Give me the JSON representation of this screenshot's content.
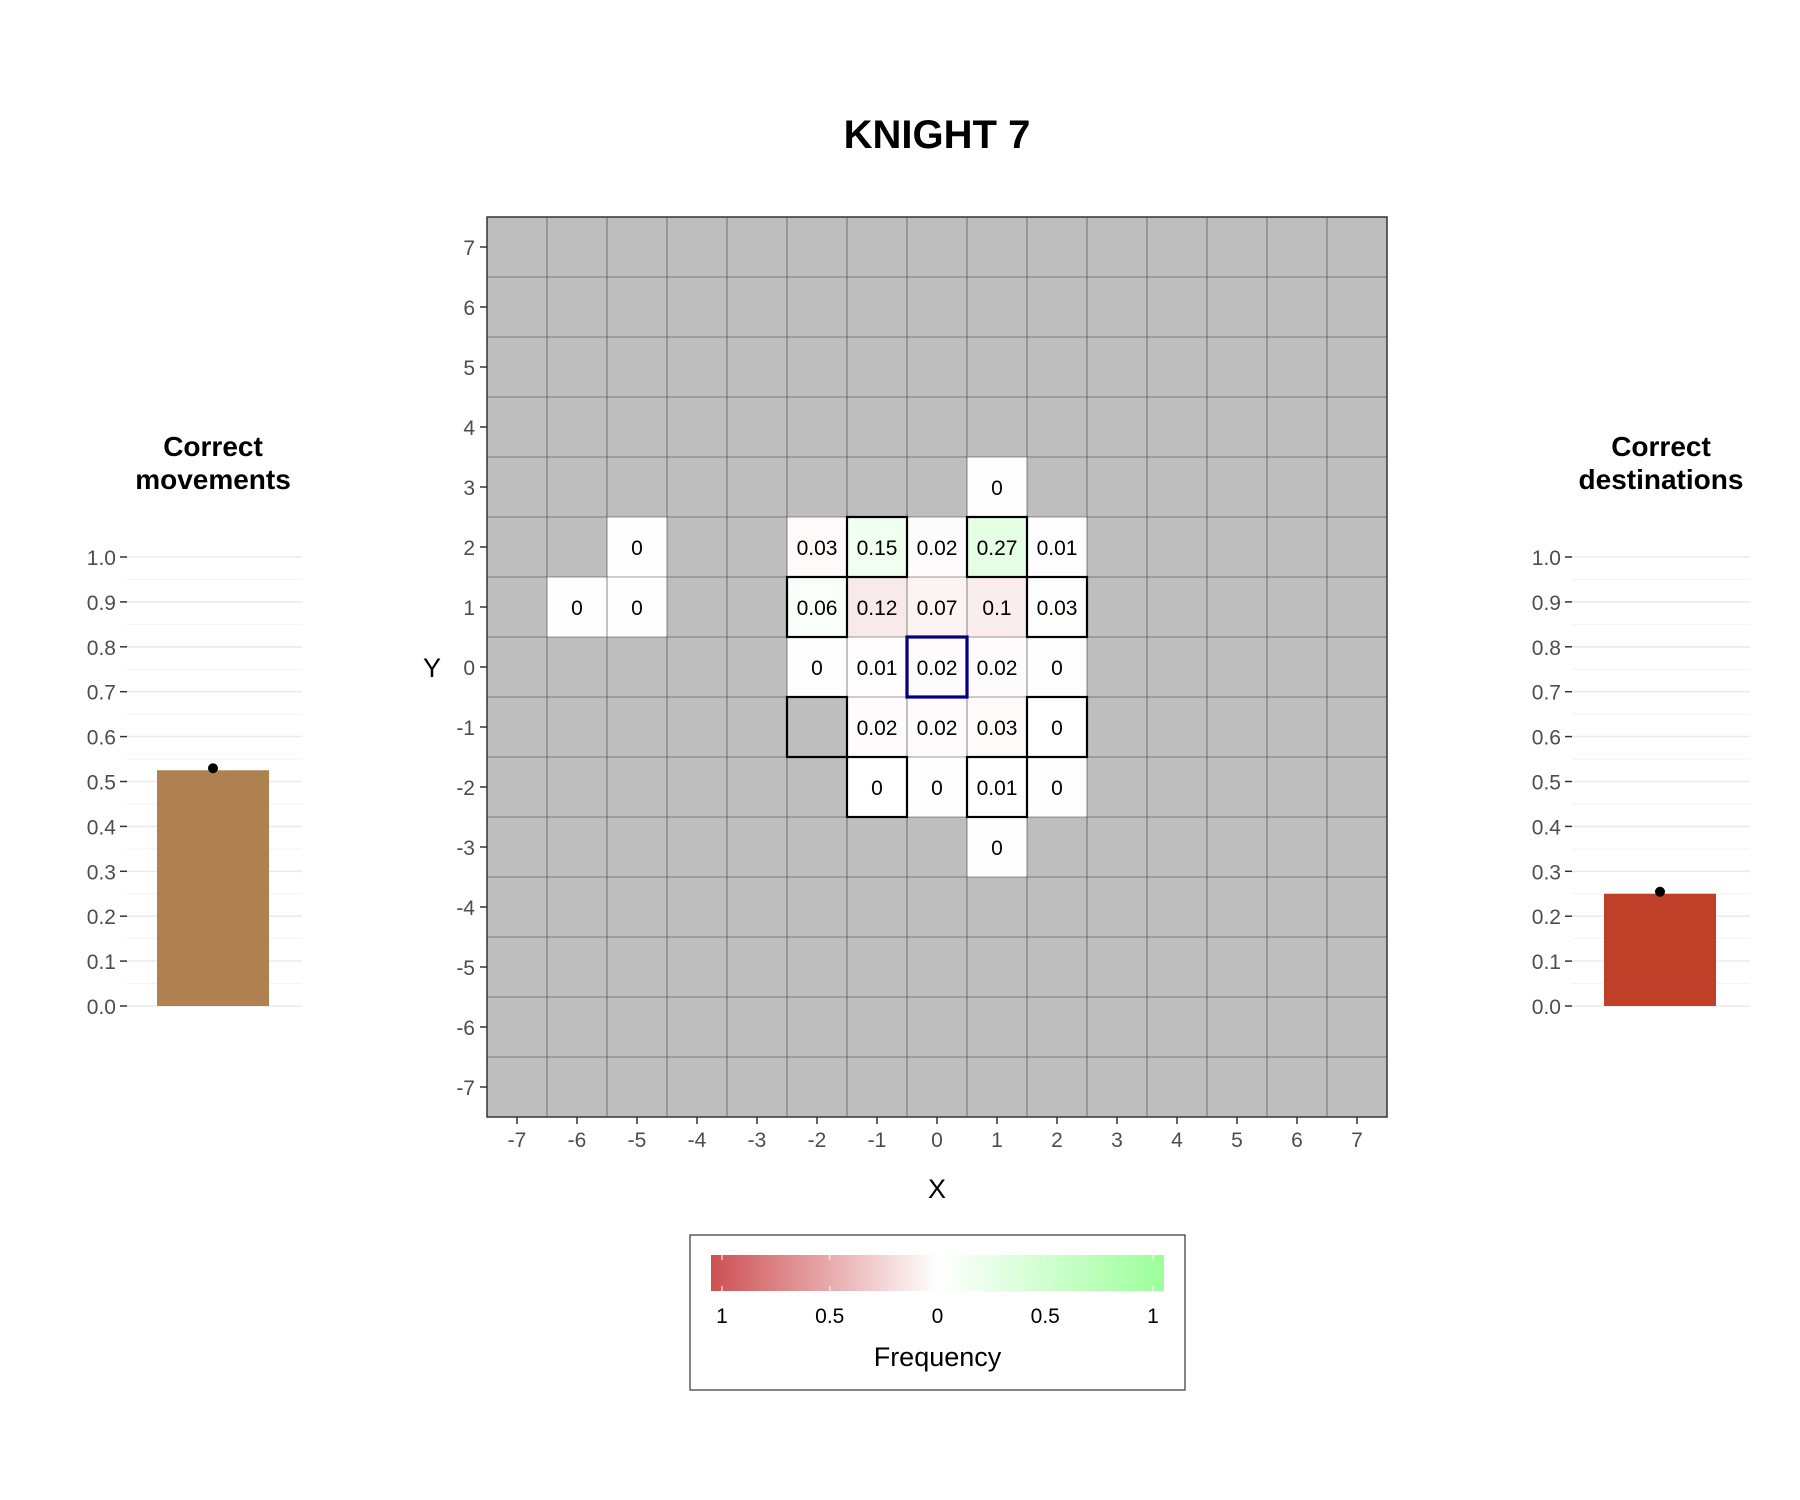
{
  "title": "KNIGHT 7",
  "left_panel": {
    "title_line1": "Correct",
    "title_line2": "movements"
  },
  "right_panel": {
    "title_line1": "Correct",
    "title_line2": "destinations"
  },
  "colors": {
    "grid_background": "#bebebe",
    "neg_high": "#cd4f52",
    "neutral": "#ffffff",
    "pos_high": "#9cff9a",
    "movements_bar": "#b08150",
    "destinations_bar": "#c03f28",
    "start_outline": "#000080",
    "target_outline": "#000000"
  },
  "chart_data": [
    {
      "type": "heatmap",
      "title": "KNIGHT 7",
      "xlabel": "X",
      "ylabel": "Y",
      "x_range": [
        -7,
        7
      ],
      "y_range": [
        -7,
        7
      ],
      "x_ticks": [
        "-7",
        "-6",
        "-5",
        "-4",
        "-3",
        "-2",
        "-1",
        "0",
        "1",
        "2",
        "3",
        "4",
        "5",
        "6",
        "7"
      ],
      "y_ticks": [
        "7",
        "6",
        "5",
        "4",
        "3",
        "2",
        "1",
        "0",
        "-1",
        "-2",
        "-3",
        "-4",
        "-5",
        "-6",
        "-7"
      ],
      "cells": [
        {
          "x": 1,
          "y": 3,
          "value": -0.004,
          "label": "0"
        },
        {
          "x": -5,
          "y": 2,
          "value": -0.004,
          "label": "0"
        },
        {
          "x": -2,
          "y": 2,
          "value": -0.03,
          "label": "0.03"
        },
        {
          "x": -1,
          "y": 2,
          "value": 0.15,
          "label": "0.15"
        },
        {
          "x": 0,
          "y": 2,
          "value": -0.02,
          "label": "0.02"
        },
        {
          "x": 1,
          "y": 2,
          "value": 0.27,
          "label": "0.27"
        },
        {
          "x": 2,
          "y": 2,
          "value": -0.01,
          "label": "0.01"
        },
        {
          "x": -6,
          "y": 1,
          "value": -0.004,
          "label": "0"
        },
        {
          "x": -5,
          "y": 1,
          "value": -0.004,
          "label": "0"
        },
        {
          "x": -2,
          "y": 1,
          "value": 0.06,
          "label": "0.06"
        },
        {
          "x": -1,
          "y": 1,
          "value": -0.12,
          "label": "0.12"
        },
        {
          "x": 0,
          "y": 1,
          "value": -0.07,
          "label": "0.07"
        },
        {
          "x": 1,
          "y": 1,
          "value": -0.1,
          "label": "0.1"
        },
        {
          "x": 2,
          "y": 1,
          "value": 0.03,
          "label": "0.03"
        },
        {
          "x": -2,
          "y": 0,
          "value": -0.004,
          "label": "0"
        },
        {
          "x": -1,
          "y": 0,
          "value": -0.01,
          "label": "0.01"
        },
        {
          "x": 0,
          "y": 0,
          "value": -0.02,
          "label": "0.02"
        },
        {
          "x": 1,
          "y": 0,
          "value": -0.02,
          "label": "0.02"
        },
        {
          "x": 2,
          "y": 0,
          "value": -0.004,
          "label": "0"
        },
        {
          "x": -1,
          "y": -1,
          "value": -0.02,
          "label": "0.02"
        },
        {
          "x": 0,
          "y": -1,
          "value": -0.02,
          "label": "0.02"
        },
        {
          "x": 1,
          "y": -1,
          "value": -0.03,
          "label": "0.03"
        },
        {
          "x": 2,
          "y": -1,
          "value": 0.004,
          "label": "0"
        },
        {
          "x": -1,
          "y": -2,
          "value": 0.004,
          "label": "0"
        },
        {
          "x": 0,
          "y": -2,
          "value": -0.004,
          "label": "0"
        },
        {
          "x": 1,
          "y": -2,
          "value": 0.01,
          "label": "0.01"
        },
        {
          "x": 2,
          "y": -2,
          "value": -0.004,
          "label": "0"
        },
        {
          "x": 1,
          "y": -3,
          "value": -0.004,
          "label": "0"
        }
      ],
      "target_cells": [
        [
          -1,
          2
        ],
        [
          1,
          2
        ],
        [
          -2,
          1
        ],
        [
          2,
          1
        ],
        [
          -2,
          -1
        ],
        [
          2,
          -1
        ],
        [
          -1,
          -2
        ],
        [
          1,
          -2
        ]
      ],
      "start_cell": [
        0,
        0
      ],
      "legend": {
        "title": "Frequency",
        "tick_labels": [
          "1",
          "0.5",
          "0",
          "0.5",
          "1"
        ],
        "range": [
          -1,
          1
        ],
        "position": "bottom"
      }
    },
    {
      "type": "bar",
      "title": "Correct movements",
      "categories": [
        ""
      ],
      "values": [
        0.525
      ],
      "ylim": [
        0,
        1
      ],
      "y_ticks": [
        "0.0",
        "0.1",
        "0.2",
        "0.3",
        "0.4",
        "0.5",
        "0.6",
        "0.7",
        "0.8",
        "0.9",
        "1.0"
      ]
    },
    {
      "type": "bar",
      "title": "Correct destinations",
      "categories": [
        ""
      ],
      "values": [
        0.25
      ],
      "ylim": [
        0,
        1
      ],
      "y_ticks": [
        "0.0",
        "0.1",
        "0.2",
        "0.3",
        "0.4",
        "0.5",
        "0.6",
        "0.7",
        "0.8",
        "0.9",
        "1.0"
      ]
    }
  ]
}
